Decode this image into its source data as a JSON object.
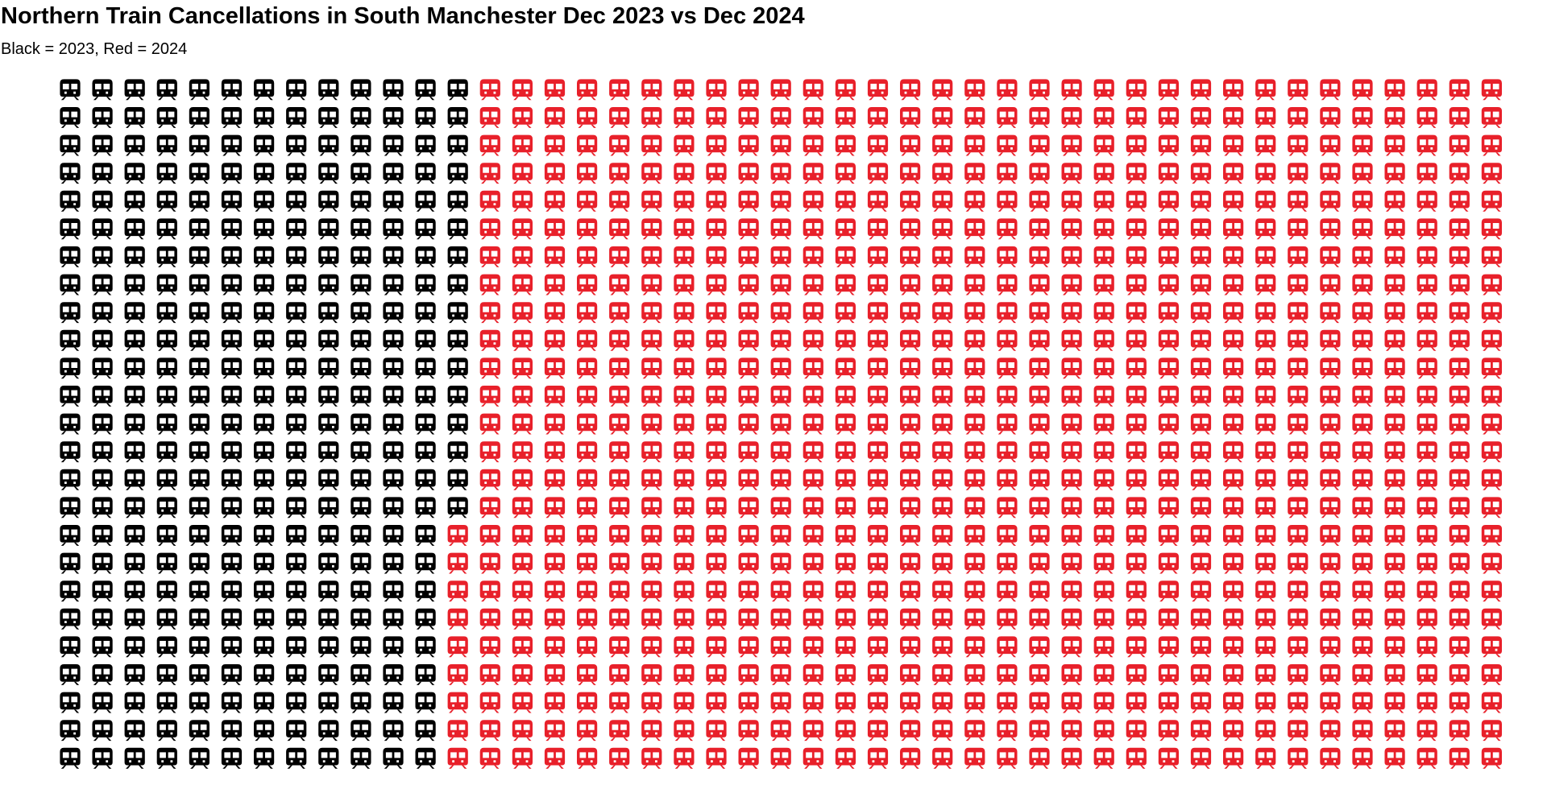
{
  "chart_data": {
    "type": "waffle",
    "title": "Northern Train Cancellations in South Manchester Dec 2023 vs Dec 2024",
    "subtitle": "Black = 2023, Red = 2024",
    "icon": "train-icon",
    "grid": false,
    "columns": 45,
    "rows": 25,
    "series": [
      {
        "label": "2023",
        "color": "#000000",
        "value": 316
      },
      {
        "label": "2024",
        "color": "#e8202a",
        "value": 809
      }
    ]
  }
}
